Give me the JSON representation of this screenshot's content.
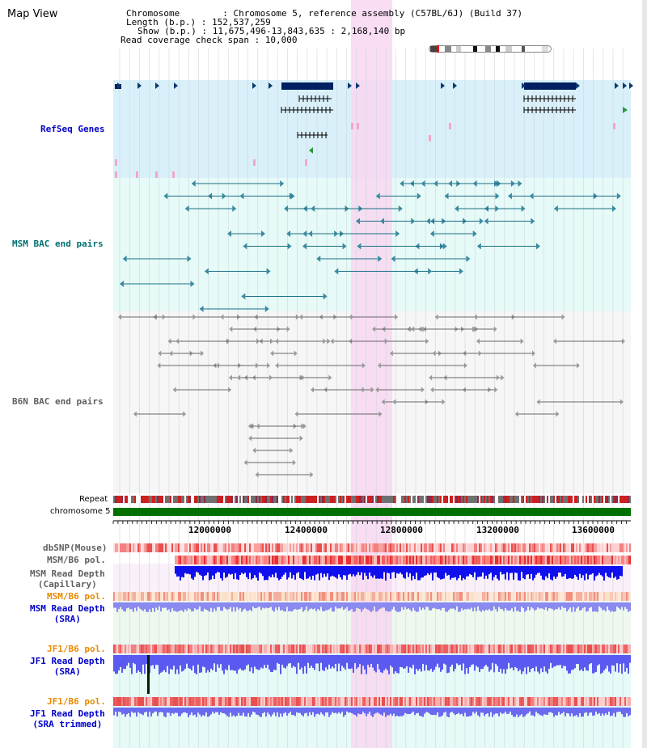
{
  "page": {
    "title": "Map View"
  },
  "info": {
    "chromosome": "Chromosome        : Chromosome 5, reference assembly (C57BL/6J) (Build 37)",
    "length": "Length (b.p.) : 152,537,259",
    "show": "Show (b.p.) : 11,675,496-13,843,635 : 2,168,140 bp",
    "coverage": "Read coverage check span : 10,000"
  },
  "tracks": {
    "refseq": "RefSeq Genes",
    "msm_bac": "MSM BAC end pairs",
    "b6n_bac": "B6N BAC end pairs",
    "repeat": "Repeat",
    "chromosome": "chromosome 5",
    "dbsnp": "dbSNP(Mouse)",
    "msm_b6_pol": "MSM/B6 pol.",
    "msm_rd_cap_1": "MSM Read Depth",
    "msm_rd_cap_2": "(Capillary)",
    "msm_b6_pol2": "MSM/B6 pol.",
    "msm_rd_sra_1": "MSM Read Depth",
    "msm_rd_sra_2": "(SRA)",
    "jf1_b6_pol": "JF1/B6 pol.",
    "jf1_rd_sra_1": "JF1 Read Depth",
    "jf1_rd_sra_2": "(SRA)",
    "jf1_b6_pol2": "JF1/B6 pol.",
    "jf1_rd_trim_1": "JF1 Read Depth",
    "jf1_rd_trim_2": "(SRA trimmed)"
  },
  "axis": {
    "ticks": [
      "12000000",
      "12400000",
      "12800000",
      "13200000",
      "13600000"
    ]
  },
  "colors": {
    "refseq_bg": "#d9f0fa",
    "bac_bg": "#e6faf8",
    "highlight": "#f8d7f1",
    "refseq_label": "#0000cc",
    "msm_label": "#007070",
    "b6n_label": "#606060",
    "orange_label": "#e88a00",
    "depth_blue": "#0000ee",
    "chrom_green": "#007000"
  }
}
